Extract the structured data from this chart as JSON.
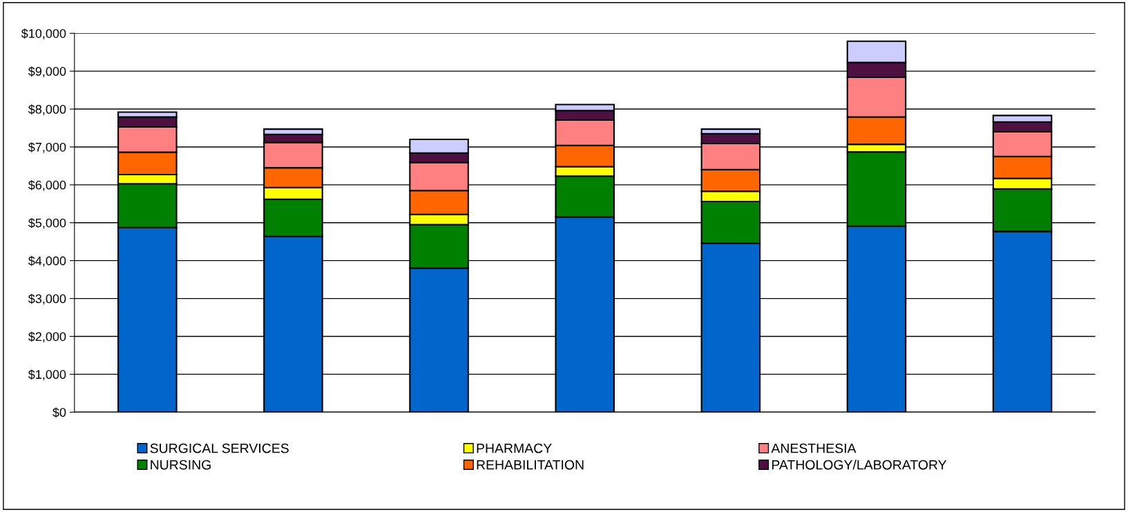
{
  "chart_data": {
    "type": "bar",
    "stacked": true,
    "categories": [
      null,
      null,
      null,
      null,
      null,
      null,
      null
    ],
    "series": [
      {
        "name": "SURGICAL SERVICES",
        "color": "#0066cc",
        "values": [
          4870,
          4640,
          3800,
          5150,
          4460,
          4910,
          4770
        ]
      },
      {
        "name": "NURSING",
        "color": "#008000",
        "values": [
          1160,
          980,
          1150,
          1080,
          1100,
          1960,
          1120
        ]
      },
      {
        "name": "PHARMACY",
        "color": "#ffff00",
        "values": [
          240,
          310,
          270,
          250,
          270,
          200,
          280
        ]
      },
      {
        "name": "REHABILITATION",
        "color": "#ff6600",
        "values": [
          590,
          520,
          630,
          560,
          570,
          720,
          580
        ]
      },
      {
        "name": "ANESTHESIA",
        "color": "#ff8080",
        "values": [
          670,
          670,
          740,
          670,
          690,
          1050,
          650
        ]
      },
      {
        "name": "PATHOLOGY/LABORATORY",
        "color": "#4d1040",
        "values": [
          260,
          210,
          250,
          250,
          260,
          390,
          260
        ]
      },
      {
        "color": "#ccccff",
        "values": [
          130,
          140,
          360,
          160,
          120,
          560,
          170
        ]
      }
    ],
    "ylim": [
      0,
      10000
    ],
    "yticks": [
      {
        "value": 0,
        "label": "$0"
      },
      {
        "value": 1000,
        "label": "$1,000"
      },
      {
        "value": 2000,
        "label": "$2,000"
      },
      {
        "value": 3000,
        "label": "$3,000"
      },
      {
        "value": 4000,
        "label": "$4,000"
      },
      {
        "value": 5000,
        "label": "$5,000"
      },
      {
        "value": 6000,
        "label": "$6,000"
      },
      {
        "value": 7000,
        "label": "$7,000"
      },
      {
        "value": 8000,
        "label": "$8,000"
      },
      {
        "value": 9000,
        "label": "$9,000"
      },
      {
        "value": 10000,
        "label": "$10,000"
      }
    ],
    "grid": "y",
    "legend": "bottom"
  }
}
